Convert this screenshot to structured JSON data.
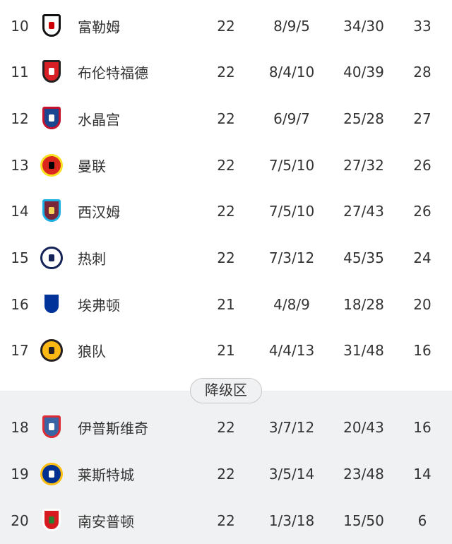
{
  "relegation_label": "降级区",
  "colors": {
    "text": "#333333",
    "zone_background": "#f0f1f3"
  },
  "rows": [
    {
      "rank": "10",
      "team": "富勒姆",
      "played": "22",
      "record": "8/9/5",
      "goals": "34/30",
      "points": "33",
      "logo": "fulham-crest",
      "c1": "#ffffff",
      "c2": "#111111",
      "c3": "#cc0000"
    },
    {
      "rank": "11",
      "team": "布伦特福德",
      "played": "22",
      "record": "8/4/10",
      "goals": "40/39",
      "points": "28",
      "logo": "brentford-crest",
      "c1": "#d81f26",
      "c2": "#222222",
      "c3": "#ffffff"
    },
    {
      "rank": "12",
      "team": "水晶宫",
      "played": "22",
      "record": "6/9/7",
      "goals": "25/28",
      "points": "27",
      "logo": "crystal-palace-crest",
      "c1": "#1b458f",
      "c2": "#c4122e",
      "c3": "#ffffff"
    },
    {
      "rank": "13",
      "team": "曼联",
      "played": "22",
      "record": "7/5/10",
      "goals": "27/32",
      "points": "26",
      "logo": "man-united-crest",
      "c1": "#da291c",
      "c2": "#fbe122",
      "c3": "#000000"
    },
    {
      "rank": "14",
      "team": "西汉姆",
      "played": "22",
      "record": "7/5/10",
      "goals": "27/43",
      "points": "26",
      "logo": "west-ham-crest",
      "c1": "#7a263a",
      "c2": "#1bb1e7",
      "c3": "#f3d459"
    },
    {
      "rank": "15",
      "team": "热刺",
      "played": "22",
      "record": "7/3/12",
      "goals": "45/35",
      "points": "24",
      "logo": "tottenham-crest",
      "c1": "#ffffff",
      "c2": "#132257",
      "c3": "#132257"
    },
    {
      "rank": "16",
      "team": "埃弗顿",
      "played": "21",
      "record": "4/8/9",
      "goals": "18/28",
      "points": "20",
      "logo": "everton-crest",
      "c1": "#003399",
      "c2": "#ffffff",
      "c3": "#003399"
    },
    {
      "rank": "17",
      "team": "狼队",
      "played": "21",
      "record": "4/4/13",
      "goals": "31/48",
      "points": "16",
      "logo": "wolves-crest",
      "c1": "#fdb913",
      "c2": "#231f20",
      "c3": "#231f20"
    }
  ],
  "relegation_rows": [
    {
      "rank": "18",
      "team": "伊普斯维奇",
      "played": "22",
      "record": "3/7/12",
      "goals": "20/43",
      "points": "16",
      "logo": "ipswich-crest",
      "c1": "#3a64a3",
      "c2": "#de2c37",
      "c3": "#ffffff"
    },
    {
      "rank": "19",
      "team": "莱斯特城",
      "played": "22",
      "record": "3/5/14",
      "goals": "23/48",
      "points": "14",
      "logo": "leicester-crest",
      "c1": "#003090",
      "c2": "#fdbe11",
      "c3": "#ffffff"
    },
    {
      "rank": "20",
      "team": "南安普顿",
      "played": "22",
      "record": "1/3/18",
      "goals": "15/50",
      "points": "6",
      "logo": "southampton-crest",
      "c1": "#d71920",
      "c2": "#ffffff",
      "c3": "#2e7d32"
    }
  ]
}
